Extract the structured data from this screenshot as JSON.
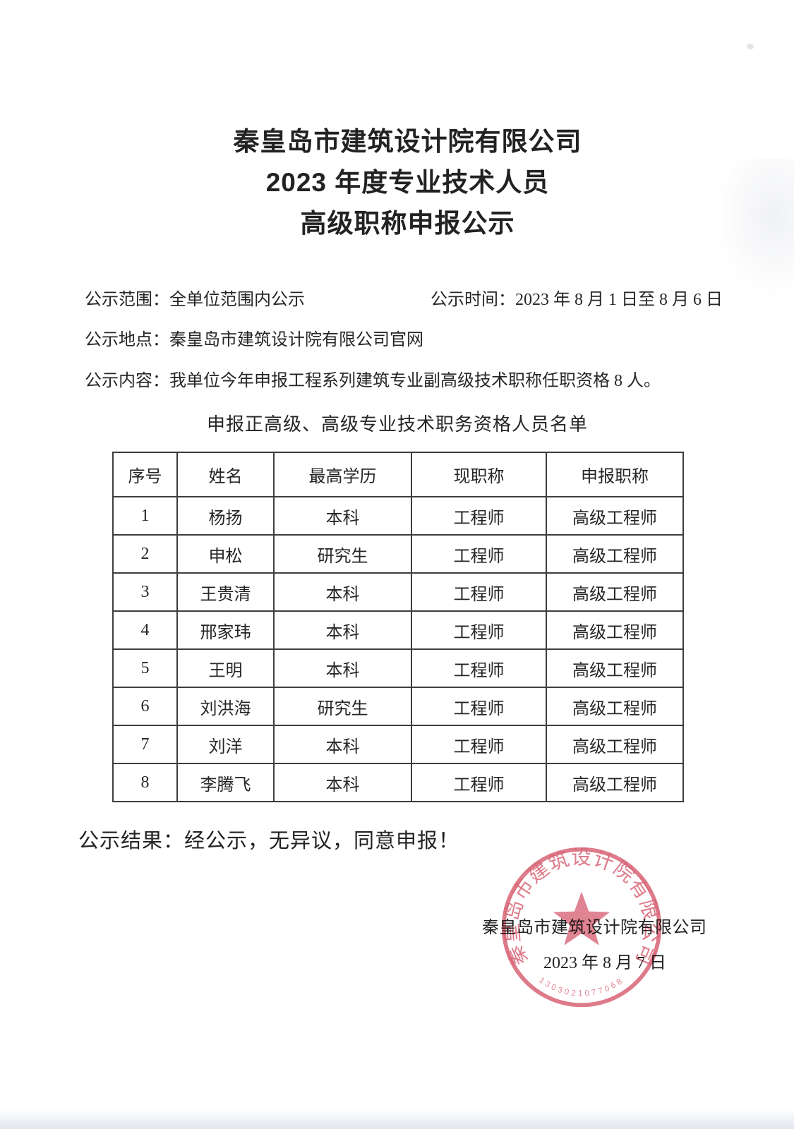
{
  "document": {
    "title_lines": [
      "秦皇岛市建筑设计院有限公司",
      "2023 年度专业技术人员",
      "高级职称申报公示"
    ],
    "meta": {
      "scope_label": "公示范围：",
      "scope_value": "全单位范围内公示",
      "time_label": "公示时间：",
      "time_value": "2023 年 8 月 1 日至 8 月 6 日",
      "place_label": "公示地点：",
      "place_value": "秦皇岛市建筑设计院有限公司官网",
      "content_label": "公示内容：",
      "content_value": "我单位今年申报工程系列建筑专业副高级技术职称任职资格 8 人。"
    },
    "table": {
      "caption": "申报正高级、高级专业技术职务资格人员名单",
      "headers": [
        "序号",
        "姓名",
        "最高学历",
        "现职称",
        "申报职称"
      ],
      "rows": [
        [
          "1",
          "杨扬",
          "本科",
          "工程师",
          "高级工程师"
        ],
        [
          "2",
          "申松",
          "研究生",
          "工程师",
          "高级工程师"
        ],
        [
          "3",
          "王贵清",
          "本科",
          "工程师",
          "高级工程师"
        ],
        [
          "4",
          "邢家玮",
          "本科",
          "工程师",
          "高级工程师"
        ],
        [
          "5",
          "王明",
          "本科",
          "工程师",
          "高级工程师"
        ],
        [
          "6",
          "刘洪海",
          "研究生",
          "工程师",
          "高级工程师"
        ],
        [
          "7",
          "刘洋",
          "本科",
          "工程师",
          "高级工程师"
        ],
        [
          "8",
          "李腾飞",
          "本科",
          "工程师",
          "高级工程师"
        ]
      ]
    },
    "result_label": "公示结果：",
    "result_value": "经公示，无异议，同意申报！",
    "signature": {
      "company": "秦皇岛市建筑设计院有限公司",
      "date": "2023 年 8 月 7 日"
    },
    "seal": {
      "ring_text": "秦皇岛市建筑设计院有限公司",
      "code": "1303021077068",
      "color": "#d5566a"
    }
  }
}
